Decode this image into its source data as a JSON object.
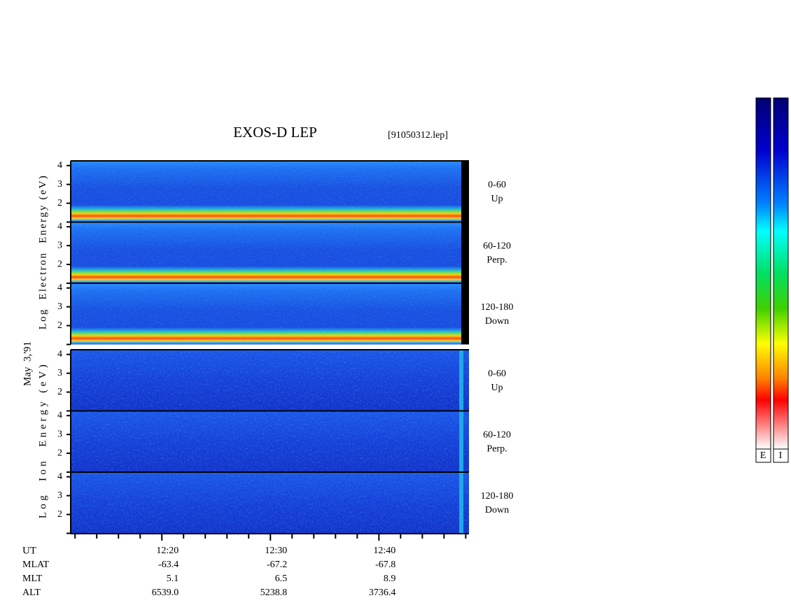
{
  "chart_data": {
    "type": "spectrogram",
    "title": "EXOS-D LEP",
    "file_label": "[91050312.lep]",
    "date_label": "May  3,'91",
    "xlim": [
      731.6,
      768.3
    ],
    "xticks": [
      {
        "value": 740,
        "label": "12:20"
      },
      {
        "value": 750,
        "label": "12:30"
      },
      {
        "value": 760,
        "label": "12:40"
      }
    ],
    "xminorticks": [
      732,
      734,
      736,
      738,
      742,
      744,
      746,
      748,
      752,
      754,
      756,
      758,
      762,
      764,
      766,
      768
    ],
    "ylim": [
      1,
      4.25
    ],
    "yticks": [
      2,
      3,
      4
    ],
    "groups": [
      {
        "ylabel": "Log  Electron  Energy (eV)",
        "colorbar_label": "E",
        "panels": [
          {
            "range": "0-60",
            "direction": "Up"
          },
          {
            "range": "60-120",
            "direction": "Perp."
          },
          {
            "range": "120-180",
            "direction": "Down"
          }
        ]
      },
      {
        "ylabel": "Log  Ion  Energy (eV)",
        "colorbar_label": "I",
        "panels": [
          {
            "range": "0-60",
            "direction": "Up"
          },
          {
            "range": "60-120",
            "direction": "Perp."
          },
          {
            "range": "120-180",
            "direction": "Down"
          }
        ]
      }
    ],
    "ut_label": "UT",
    "orbit": [
      {
        "name": "MLAT",
        "values": [
          -63.4,
          -67.2,
          -67.8
        ]
      },
      {
        "name": "MLT",
        "values": [
          5.1,
          6.5,
          8.9
        ]
      },
      {
        "name": "ALT",
        "values": [
          {
            "value": 6539,
            "label": "6539.0"
          },
          5238.8,
          3736.4
        ]
      }
    ]
  }
}
